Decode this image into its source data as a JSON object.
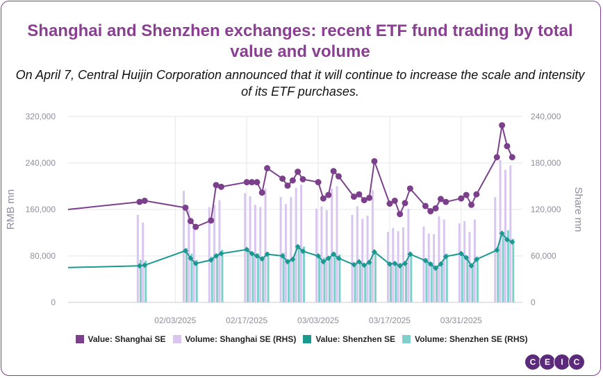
{
  "header": {
    "title": "Shanghai and Shenzhen exchanges: recent ETF fund trading by total value and volume",
    "subtitle": "On April 7, Central Huijin Corporation announced that it will continue to increase the scale and intensity of its ETF purchases."
  },
  "logo": {
    "letters": [
      "C",
      "E",
      "I",
      "C"
    ]
  },
  "colors": {
    "value_sh": "#7b3f8c",
    "volume_sh": "#d9c6f0",
    "value_sz": "#1a9990",
    "volume_sz": "#7fd0cc",
    "axis_text": "#8d8d9e",
    "grid": "#e6e6ee"
  },
  "chart_data": {
    "type": "line",
    "xlabel": "",
    "ylabel": "RMB mn",
    "y2label": "Share mn",
    "x_ticks": [
      "02/03/2025",
      "02/17/2025",
      "03/03/2025",
      "03/17/2025",
      "03/31/2025"
    ],
    "ylim": [
      0,
      320000
    ],
    "y2lim": [
      0,
      240000
    ],
    "y_ticks": [
      "0",
      "80,000",
      "160,000",
      "240,000",
      "320,000"
    ],
    "y2_ticks": [
      "0",
      "60,000",
      "120,000",
      "180,000",
      "240,000"
    ],
    "grid": true,
    "legend_position": "bottom",
    "dates": [
      "2025-01-13",
      "2025-01-27",
      "2025-01-28",
      "2025-02-05",
      "2025-02-06",
      "2025-02-07",
      "2025-02-10",
      "2025-02-11",
      "2025-02-12",
      "2025-02-13",
      "2025-02-14",
      "2025-02-17",
      "2025-02-18",
      "2025-02-19",
      "2025-02-20",
      "2025-02-21",
      "2025-02-24",
      "2025-02-25",
      "2025-02-26",
      "2025-02-27",
      "2025-02-28",
      "2025-03-03",
      "2025-03-04",
      "2025-03-05",
      "2025-03-06",
      "2025-03-07",
      "2025-03-10",
      "2025-03-11",
      "2025-03-12",
      "2025-03-13",
      "2025-03-14",
      "2025-03-17",
      "2025-03-18",
      "2025-03-19",
      "2025-03-20",
      "2025-03-21",
      "2025-03-24",
      "2025-03-25",
      "2025-03-26",
      "2025-03-27",
      "2025-03-28",
      "2025-03-31",
      "2025-04-01",
      "2025-04-02",
      "2025-04-03",
      "2025-04-07",
      "2025-04-08",
      "2025-04-09",
      "2025-04-10",
      "2025-04-11"
    ],
    "series": [
      {
        "name": "Value: Shanghai SE",
        "axis": "left",
        "kind": "line",
        "values": [
          160000,
          173000,
          175000,
          163000,
          140000,
          130000,
          141000,
          202000,
          199000,
          null,
          null,
          207000,
          207000,
          207000,
          189000,
          231000,
          213000,
          201000,
          210000,
          225000,
          212000,
          207000,
          179000,
          185000,
          226000,
          217000,
          182000,
          186000,
          176000,
          180000,
          243000,
          170000,
          175000,
          152000,
          171000,
          196000,
          166000,
          157000,
          162000,
          178000,
          173000,
          179000,
          185000,
          168000,
          186000,
          250000,
          305000,
          269000,
          250000,
          null
        ]
      },
      {
        "name": "Volume: Shanghai SE (RHS)",
        "axis": "right",
        "kind": "bar",
        "values": [
          null,
          113000,
          103000,
          144000,
          119000,
          101000,
          123000,
          126000,
          132000,
          null,
          null,
          141000,
          137000,
          126000,
          123000,
          147000,
          136000,
          127000,
          136000,
          148000,
          152000,
          121000,
          124000,
          119000,
          147000,
          150000,
          113000,
          124000,
          108000,
          112000,
          145000,
          91000,
          96000,
          92000,
          97000,
          121000,
          98000,
          89000,
          88000,
          111000,
          107000,
          102000,
          105000,
          91000,
          107000,
          136000,
          184000,
          171000,
          177000,
          null
        ]
      },
      {
        "name": "Value: Shenzhen SE",
        "axis": "left",
        "kind": "line",
        "values": [
          60000,
          63000,
          64000,
          89000,
          76000,
          67000,
          73000,
          80000,
          84000,
          null,
          null,
          91000,
          84000,
          80000,
          75000,
          83000,
          80000,
          70000,
          74000,
          96000,
          88000,
          80000,
          70000,
          76000,
          83000,
          76000,
          65000,
          70000,
          64000,
          69000,
          87000,
          66000,
          67000,
          63000,
          67000,
          83000,
          72000,
          66000,
          59000,
          66000,
          79000,
          84000,
          77000,
          63000,
          74000,
          90000,
          119000,
          108000,
          104000,
          null
        ]
      },
      {
        "name": "Volume: Shenzhen SE (RHS)",
        "axis": "right",
        "kind": "bar",
        "values": [
          null,
          55000,
          54000,
          70000,
          63000,
          55000,
          59000,
          63000,
          68000,
          null,
          null,
          70000,
          65000,
          63000,
          58000,
          65000,
          64000,
          56000,
          59000,
          73000,
          72000,
          61000,
          58000,
          57000,
          65000,
          62000,
          50000,
          53000,
          49000,
          52000,
          64000,
          52000,
          52000,
          51000,
          51000,
          65000,
          57000,
          52000,
          48000,
          53000,
          63000,
          64000,
          60000,
          50000,
          59000,
          72000,
          90000,
          93000,
          82000,
          null
        ]
      }
    ]
  },
  "legend": {
    "items": [
      {
        "label": "Value: Shanghai SE"
      },
      {
        "label": "Volume: Shanghai SE (RHS)"
      },
      {
        "label": "Value: Shenzhen SE"
      },
      {
        "label": "Volume: Shenzhen SE (RHS)"
      }
    ]
  }
}
